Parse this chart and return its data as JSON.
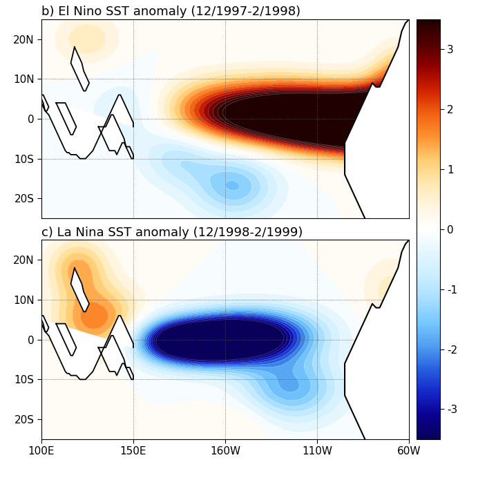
{
  "title_b": "b) El Nino SST anomaly (12/1997-2/1998)",
  "title_c": "c) La Nina SST anomaly (12/1998-2/1999)",
  "lon_min": 100,
  "lon_max": 300,
  "lat_min": -25,
  "lat_max": 25,
  "clim_min": -3.5,
  "clim_max": 3.5,
  "colorbar_ticks": [
    3,
    2,
    1,
    0,
    -1,
    -2,
    -3
  ],
  "xtick_positions": [
    100,
    150,
    200,
    250,
    300
  ],
  "xtick_labels": [
    "100E",
    "150E",
    "160W",
    "110W",
    "60W"
  ],
  "ytick_positions": [
    -20,
    -10,
    0,
    10,
    20
  ],
  "ytick_labels": [
    "20S",
    "10S",
    "0",
    "10N",
    "20N"
  ],
  "grid_lons": [
    150,
    200,
    250
  ],
  "grid_lats": [
    -10,
    0,
    10
  ],
  "title_fontsize": 13,
  "tick_fontsize": 11,
  "cmap_colors": [
    "#08005a",
    "#0a0090",
    "#1428c8",
    "#2860e0",
    "#50a0f0",
    "#78c8ff",
    "#a8deff",
    "#cceeff",
    "#e4f6ff",
    "#ffffff",
    "#fff4e0",
    "#ffe8b0",
    "#ffcc70",
    "#ff9030",
    "#f06010",
    "#d02000",
    "#900000",
    "#500000",
    "#200000"
  ]
}
